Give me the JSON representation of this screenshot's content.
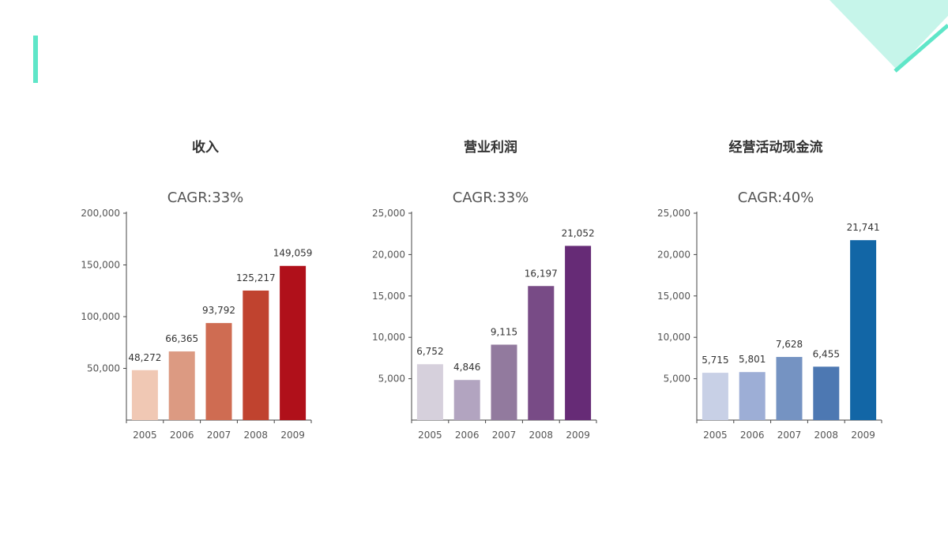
{
  "chart_data": [
    {
      "type": "bar",
      "title": "收入",
      "subtitle": "CAGR:33%",
      "categories": [
        "2005",
        "2006",
        "2007",
        "2008",
        "2009"
      ],
      "values": [
        48272,
        66365,
        93792,
        125217,
        149059
      ],
      "value_labels": [
        "48,272",
        "66,365",
        "93,792",
        "125,217",
        "149,059"
      ],
      "yticks": [
        50000,
        100000,
        150000,
        200000
      ],
      "ytick_labels": [
        "50,000",
        "100,000",
        "150,000",
        "200,000"
      ],
      "ylim": [
        0,
        200000
      ],
      "colors": [
        "#f0c8b4",
        "#dc9a82",
        "#cf6c52",
        "#c0432f",
        "#b0101a"
      ],
      "grid": false,
      "legend": "none"
    },
    {
      "type": "bar",
      "title": "营业利润",
      "subtitle": "CAGR:33%",
      "categories": [
        "2005",
        "2006",
        "2007",
        "2008",
        "2009"
      ],
      "values": [
        6752,
        4846,
        9115,
        16197,
        21052
      ],
      "value_labels": [
        "6,752",
        "4,846",
        "9,115",
        "16,197",
        "21,052"
      ],
      "yticks": [
        5000,
        10000,
        15000,
        20000,
        25000
      ],
      "ytick_labels": [
        "5,000",
        "10,000",
        "15,000",
        "20,000",
        "25,000"
      ],
      "ylim": [
        0,
        25000
      ],
      "colors": [
        "#d6d0dc",
        "#b2a4c0",
        "#927a9e",
        "#784b86",
        "#662b76"
      ],
      "grid": false,
      "legend": "none"
    },
    {
      "type": "bar",
      "title": "经营活动现金流",
      "subtitle": "CAGR:40%",
      "categories": [
        "2005",
        "2006",
        "2007",
        "2008",
        "2009"
      ],
      "values": [
        5715,
        5801,
        7628,
        6455,
        21741
      ],
      "value_labels": [
        "5,715",
        "5,801",
        "7,628",
        "6,455",
        "21,741"
      ],
      "yticks": [
        5000,
        10000,
        15000,
        20000,
        25000
      ],
      "ytick_labels": [
        "5,000",
        "10,000",
        "15,000",
        "20,000",
        "25,000"
      ],
      "ylim": [
        0,
        25000
      ],
      "colors": [
        "#c8d0e6",
        "#9daed6",
        "#7593c2",
        "#4d78b2",
        "#1266a6"
      ],
      "grid": false,
      "legend": "none"
    }
  ],
  "colors": {
    "accent": "#5fe6c8",
    "corner_light": "#c6f5ea"
  }
}
